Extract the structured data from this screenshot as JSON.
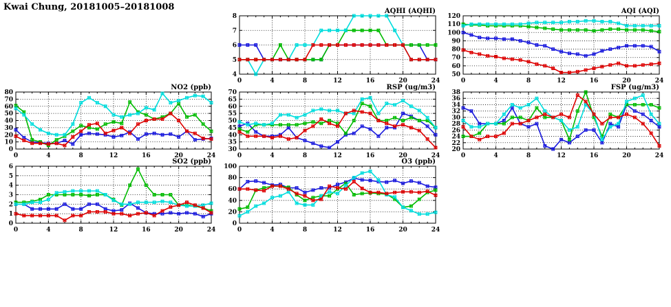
{
  "page_title": "Kwai Chung, 20181005–20181008",
  "series_colors": {
    "blue": "#1a1add",
    "green": "#00bb00",
    "cyan": "#00dddd",
    "red": "#dd0000"
  },
  "x_hours": [
    0,
    1,
    2,
    3,
    4,
    5,
    6,
    7,
    8,
    9,
    10,
    11,
    12,
    13,
    14,
    15,
    16,
    17,
    18,
    19,
    20,
    21,
    22,
    23,
    24
  ],
  "chart_data": [
    {
      "id": "aqhi",
      "title": "AQHI (AQHI)",
      "type": "line",
      "xlabel": "",
      "ylabel": "",
      "xlim": [
        0,
        24
      ],
      "xticks": [
        0,
        4,
        8,
        12,
        16,
        20,
        24
      ],
      "ylim": [
        4,
        8
      ],
      "yticks": [
        4,
        5,
        6,
        7,
        8
      ],
      "grid": true,
      "legend": "none",
      "series": [
        {
          "name": "blue",
          "values": [
            6,
            6,
            6,
            5,
            5,
            5,
            5,
            5,
            5,
            5,
            5,
            6,
            6,
            6,
            6,
            6,
            6,
            6,
            6,
            6,
            6,
            6,
            6,
            5,
            5
          ]
        },
        {
          "name": "green",
          "values": [
            5,
            5,
            5,
            5,
            5,
            6,
            5,
            5,
            5,
            5,
            5,
            6,
            6,
            7,
            7,
            7,
            7,
            7,
            6,
            6,
            6,
            6,
            6,
            6,
            6
          ]
        },
        {
          "name": "cyan",
          "values": [
            5,
            5,
            4,
            5,
            5,
            5,
            5,
            6,
            6,
            6,
            7,
            7,
            7,
            7,
            8,
            8,
            8,
            8,
            8,
            7,
            6,
            5,
            5,
            5,
            5
          ]
        },
        {
          "name": "red",
          "values": [
            5,
            5,
            5,
            5,
            5,
            5,
            5,
            5,
            5,
            6,
            6,
            6,
            6,
            6,
            6,
            6,
            6,
            6,
            6,
            6,
            6,
            5,
            5,
            5,
            5
          ]
        }
      ]
    },
    {
      "id": "aqi",
      "title": "AQI (AQI)",
      "type": "line",
      "xlabel": "",
      "ylabel": "",
      "xlim": [
        0,
        24
      ],
      "xticks": [
        0,
        4,
        8,
        12,
        16,
        20,
        24
      ],
      "ylim": [
        50,
        120
      ],
      "yticks": [
        50,
        60,
        70,
        80,
        90,
        100,
        110,
        120
      ],
      "grid": true,
      "legend": "none",
      "series": [
        {
          "name": "blue",
          "values": [
            100,
            97,
            94,
            93,
            93,
            92,
            92,
            90,
            88,
            85,
            84,
            80,
            77,
            75,
            74,
            72,
            74,
            78,
            80,
            82,
            84,
            84,
            84,
            83,
            77
          ]
        },
        {
          "name": "green",
          "values": [
            110,
            109,
            109,
            108,
            108,
            108,
            108,
            108,
            107,
            106,
            105,
            104,
            103,
            103,
            103,
            103,
            102,
            103,
            104,
            104,
            103,
            103,
            103,
            102,
            101
          ]
        },
        {
          "name": "cyan",
          "values": [
            108,
            110,
            110,
            110,
            110,
            110,
            110,
            110,
            111,
            112,
            112,
            112,
            112,
            113,
            113,
            114,
            114,
            113,
            113,
            111,
            108,
            108,
            108,
            108,
            108
          ]
        },
        {
          "name": "red",
          "values": [
            79,
            76,
            74,
            72,
            71,
            69,
            68,
            67,
            65,
            62,
            60,
            57,
            52,
            52,
            53,
            55,
            57,
            59,
            61,
            63,
            60,
            60,
            61,
            62,
            63
          ]
        }
      ]
    },
    {
      "id": "no2",
      "title": "NO2 (ppb)",
      "type": "line",
      "xlabel": "",
      "ylabel": "",
      "xlim": [
        0,
        24
      ],
      "xticks": [
        0,
        4,
        8,
        12,
        16,
        20,
        24
      ],
      "ylim": [
        0,
        80
      ],
      "yticks": [
        0,
        10,
        20,
        30,
        40,
        50,
        60,
        70,
        80
      ],
      "grid": true,
      "legend": "none",
      "series": [
        {
          "name": "blue",
          "values": [
            27,
            16,
            10,
            9,
            8,
            8,
            12,
            7,
            20,
            22,
            21,
            20,
            17,
            19,
            24,
            14,
            21,
            22,
            20,
            21,
            17,
            25,
            13,
            14,
            15
          ]
        },
        {
          "name": "green",
          "values": [
            61,
            52,
            13,
            10,
            5,
            13,
            18,
            25,
            33,
            30,
            28,
            35,
            38,
            36,
            66,
            52,
            48,
            42,
            45,
            50,
            64,
            45,
            48,
            35,
            25
          ]
        },
        {
          "name": "cyan",
          "values": [
            57,
            48,
            35,
            27,
            22,
            20,
            20,
            35,
            65,
            72,
            65,
            60,
            48,
            45,
            48,
            50,
            58,
            55,
            78,
            65,
            68,
            72,
            75,
            74,
            65
          ]
        },
        {
          "name": "red",
          "values": [
            18,
            12,
            8,
            8,
            7,
            8,
            5,
            17,
            25,
            34,
            36,
            22,
            26,
            30,
            22,
            35,
            40,
            42,
            42,
            50,
            40,
            25,
            22,
            15,
            14
          ]
        }
      ]
    },
    {
      "id": "rsp",
      "title": "RSP (ug/m3)",
      "type": "line",
      "xlabel": "",
      "ylabel": "",
      "xlim": [
        0,
        24
      ],
      "xticks": [
        0,
        4,
        8,
        12,
        16,
        20,
        24
      ],
      "ylim": [
        30,
        70
      ],
      "yticks": [
        30,
        35,
        40,
        45,
        50,
        55,
        60,
        65,
        70
      ],
      "grid": true,
      "legend": "none",
      "series": [
        {
          "name": "blue",
          "values": [
            46,
            48,
            42,
            39,
            39,
            40,
            45,
            38,
            36,
            34,
            32,
            31,
            35,
            40,
            41,
            46,
            44,
            39,
            45,
            45,
            55,
            53,
            50,
            46,
            40
          ]
        },
        {
          "name": "green",
          "values": [
            44,
            42,
            47,
            47,
            47,
            47,
            47,
            47,
            48,
            49,
            48,
            50,
            48,
            41,
            50,
            62,
            60,
            50,
            50,
            52,
            50,
            52,
            50,
            50,
            45
          ]
        },
        {
          "name": "cyan",
          "values": [
            49,
            47,
            48,
            47,
            48,
            54,
            54,
            52,
            54,
            57,
            58,
            57,
            57,
            55,
            55,
            65,
            66,
            55,
            62,
            61,
            64,
            60,
            57,
            52,
            45
          ]
        },
        {
          "name": "red",
          "values": [
            42,
            39,
            39,
            39,
            38,
            39,
            37,
            38,
            43,
            46,
            51,
            48,
            46,
            55,
            57,
            56,
            55,
            50,
            48,
            46,
            47,
            45,
            43,
            37,
            31
          ]
        }
      ]
    },
    {
      "id": "fsp",
      "title": "FSP (ug/m3)",
      "type": "line",
      "xlabel": "",
      "ylabel": "",
      "xlim": [
        0,
        24
      ],
      "xticks": [
        0,
        4,
        8,
        12,
        16,
        20,
        24
      ],
      "ylim": [
        20,
        38
      ],
      "yticks": [
        20,
        22,
        24,
        26,
        28,
        30,
        32,
        34,
        36,
        38
      ],
      "grid": true,
      "legend": "none",
      "series": [
        {
          "name": "blue",
          "values": [
            33,
            32,
            28,
            28,
            28,
            29,
            33,
            28,
            27,
            28,
            21,
            20,
            23,
            22,
            24,
            26,
            26,
            22,
            28,
            27,
            34,
            32,
            31,
            29,
            27
          ]
        },
        {
          "name": "green",
          "values": [
            24,
            24,
            25,
            28,
            28,
            28,
            30,
            30,
            29,
            33,
            30,
            30,
            29,
            23,
            32,
            38,
            30,
            24,
            31,
            30,
            34,
            34,
            34,
            34,
            33
          ]
        },
        {
          "name": "cyan",
          "values": [
            29,
            27,
            27,
            28,
            28,
            31,
            34,
            33,
            34,
            36,
            32,
            30,
            29,
            26,
            27,
            34,
            31,
            23,
            27,
            28,
            35,
            36,
            37,
            31,
            28
          ]
        },
        {
          "name": "red",
          "values": [
            27,
            24,
            23,
            24,
            24,
            25,
            28,
            28,
            29,
            30,
            31,
            30,
            31,
            30,
            37,
            35,
            31,
            28,
            30,
            30,
            31,
            30,
            28,
            25,
            21
          ]
        }
      ]
    },
    {
      "id": "so2",
      "title": "SO2 (ppb)",
      "type": "line",
      "xlabel": "",
      "ylabel": "",
      "xlim": [
        0,
        24
      ],
      "xticks": [
        0,
        4,
        8,
        12,
        16,
        20,
        24
      ],
      "ylim": [
        0,
        6
      ],
      "yticks": [
        0,
        1,
        2,
        3,
        4,
        5,
        6
      ],
      "grid": true,
      "legend": "none",
      "series": [
        {
          "name": "blue",
          "values": [
            2,
            2,
            1.5,
            1.5,
            1.5,
            1.5,
            2,
            1.5,
            1.5,
            2,
            2,
            1.5,
            1.3,
            1.4,
            2.1,
            1.6,
            1.1,
            1,
            1,
            1.1,
            1,
            1.1,
            1,
            0.7,
            1
          ]
        },
        {
          "name": "green",
          "values": [
            2.2,
            2.2,
            2.3,
            2.5,
            3,
            3,
            3,
            3,
            3,
            2.9,
            3,
            3,
            2.5,
            1.9,
            4,
            5.7,
            4,
            3,
            3,
            3,
            1.9,
            1.9,
            1.8,
            1.6,
            1.3
          ]
        },
        {
          "name": "cyan",
          "values": [
            2,
            2,
            2.2,
            2.2,
            2.5,
            3.2,
            3.3,
            3.4,
            3.4,
            3.4,
            3.4,
            3,
            2.4,
            2,
            2,
            2.2,
            2.2,
            2.2,
            2.3,
            2.2,
            1.9,
            1.8,
            1.8,
            1.9,
            2.1
          ]
        },
        {
          "name": "red",
          "values": [
            1,
            0.8,
            0.8,
            0.8,
            0.8,
            0.8,
            0.3,
            0.8,
            0.8,
            1.2,
            1.2,
            1.2,
            1,
            1,
            0.8,
            1,
            1.1,
            0.8,
            1.3,
            1.7,
            1.9,
            2.2,
            1.9,
            1.6,
            1.1
          ]
        }
      ]
    },
    {
      "id": "o3",
      "title": "O3 (ppb)",
      "type": "line",
      "xlabel": "",
      "ylabel": "",
      "xlim": [
        0,
        24
      ],
      "xticks": [
        0,
        4,
        8,
        12,
        16,
        20,
        24
      ],
      "ylim": [
        0,
        100
      ],
      "yticks": [
        0,
        20,
        40,
        60,
        80,
        100
      ],
      "grid": true,
      "legend": "none",
      "series": [
        {
          "name": "blue",
          "values": [
            60,
            73,
            74,
            71,
            67,
            68,
            62,
            62,
            54,
            58,
            62,
            62,
            68,
            72,
            79,
            76,
            75,
            73,
            72,
            75,
            70,
            74,
            71,
            65,
            63
          ]
        },
        {
          "name": "green",
          "values": [
            25,
            28,
            58,
            62,
            65,
            65,
            63,
            50,
            40,
            45,
            48,
            48,
            60,
            70,
            50,
            52,
            53,
            52,
            51,
            42,
            28,
            30,
            42,
            54,
            58
          ]
        },
        {
          "name": "cyan",
          "values": [
            13,
            20,
            30,
            35,
            45,
            48,
            55,
            35,
            32,
            32,
            48,
            55,
            52,
            66,
            80,
            88,
            91,
            76,
            50,
            46,
            28,
            22,
            16,
            16,
            19
          ]
        },
        {
          "name": "red",
          "values": [
            60,
            60,
            58,
            57,
            65,
            65,
            60,
            52,
            48,
            40,
            42,
            65,
            62,
            60,
            73,
            61,
            54,
            54,
            52,
            54,
            55,
            55,
            54,
            56,
            49
          ]
        }
      ]
    }
  ]
}
